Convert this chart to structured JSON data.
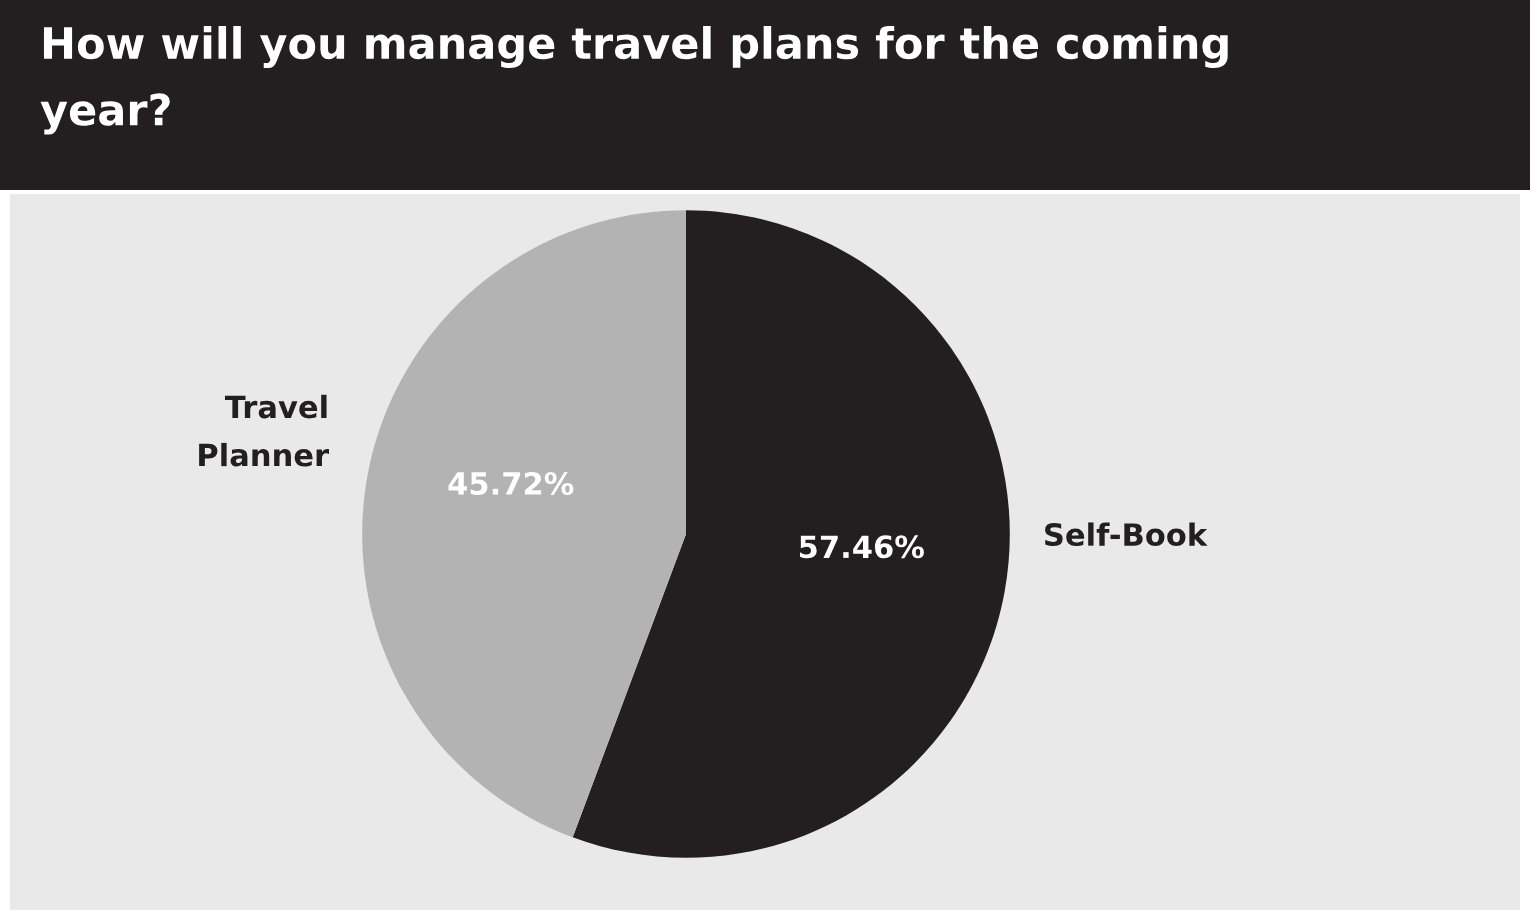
{
  "chart_data": {
    "type": "pie",
    "title": "How will you manage travel plans for the coming\nyear?",
    "categories": [
      "Self-Book",
      "Travel\nPlanner"
    ],
    "values": [
      57.46,
      45.72
    ],
    "colors": [
      "#231f20",
      "#b3b3b3"
    ],
    "value_labels": [
      "57.46%",
      "45.72%"
    ],
    "legend": false
  }
}
